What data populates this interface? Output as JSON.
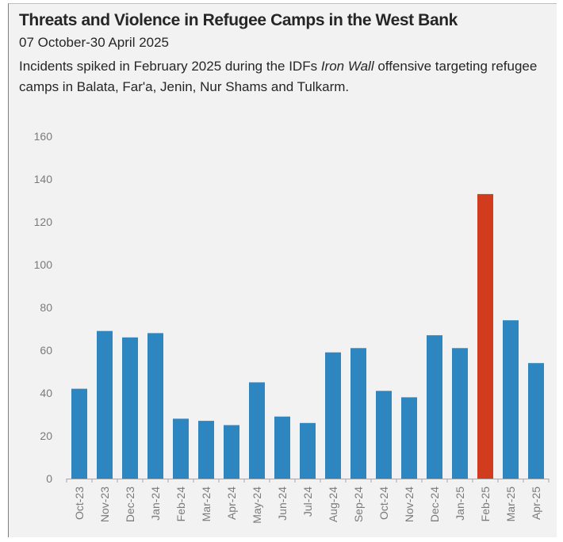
{
  "chart_data": {
    "type": "bar",
    "title": "Threats and Violence in Refugee Camps in the West Bank",
    "date_range": "07 October-30 April 2025",
    "subtitle_parts": [
      "Incidents spiked in February 2025 during the IDFs ",
      "Iron Wall",
      " offensive targeting refugee camps in Balata, Far'a, Jenin, Nur Shams and Tulkarm."
    ],
    "categories": [
      "Oct-23",
      "Nov-23",
      "Dec-23",
      "Jan-24",
      "Feb-24",
      "Mar-24",
      "Apr-24",
      "May-24",
      "Jun-24",
      "Jul-24",
      "Aug-24",
      "Sep-24",
      "Oct-24",
      "Nov-24",
      "Dec-24",
      "Jan-25",
      "Feb-25",
      "Mar-25",
      "Apr-25"
    ],
    "values": [
      42,
      69,
      66,
      68,
      28,
      27,
      25,
      45,
      29,
      26,
      59,
      61,
      41,
      38,
      67,
      61,
      133,
      74,
      54
    ],
    "ylim": [
      0,
      160
    ],
    "yticks": [
      0,
      20,
      40,
      60,
      80,
      100,
      120,
      140,
      160
    ],
    "highlight_category": "Feb-25",
    "colors": {
      "bar": "#2e86c1",
      "highlight": "#d13c1e"
    },
    "grid": false,
    "legend": "none"
  }
}
